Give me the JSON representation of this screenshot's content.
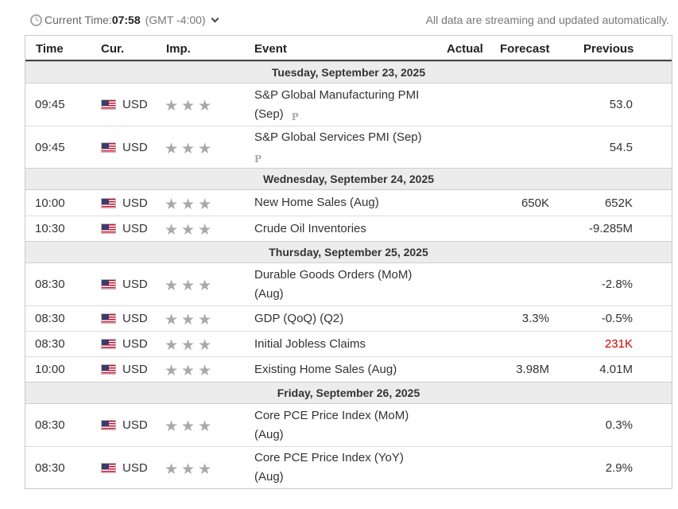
{
  "header": {
    "time_label": "Current Time:",
    "time_value": "07:58",
    "timezone": "(GMT -4:00)",
    "streaming_note": "All data are streaming and updated automatically."
  },
  "columns": {
    "time": "Time",
    "currency": "Cur.",
    "importance": "Imp.",
    "event": "Event",
    "actual": "Actual",
    "forecast": "Forecast",
    "previous": "Previous"
  },
  "colors": {
    "negative_red": "#d40000",
    "star_gray": "#a9a9a9"
  },
  "days": [
    {
      "date": "Tuesday, September 23, 2025",
      "events": [
        {
          "time": "09:45",
          "flag_icon": "us-flag-icon",
          "currency": "USD",
          "importance": 3,
          "event_line1": "S&P Global Manufacturing PMI",
          "event_line2": "(Sep)",
          "preliminary": "P",
          "actual": "",
          "forecast": "",
          "previous": "53.0"
        },
        {
          "time": "09:45",
          "flag_icon": "us-flag-icon",
          "currency": "USD",
          "importance": 3,
          "event_line1": "S&P Global Services PMI (Sep)",
          "event_line2": "",
          "preliminary": "P",
          "actual": "",
          "forecast": "",
          "previous": "54.5"
        }
      ]
    },
    {
      "date": "Wednesday, September 24, 2025",
      "events": [
        {
          "time": "10:00",
          "flag_icon": "us-flag-icon",
          "currency": "USD",
          "importance": 3,
          "event_line1": "New Home Sales (Aug)",
          "event_line2": "",
          "actual": "",
          "forecast": "650K",
          "previous": "652K"
        },
        {
          "time": "10:30",
          "flag_icon": "us-flag-icon",
          "currency": "USD",
          "importance": 3,
          "event_line1": "Crude Oil Inventories",
          "event_line2": "",
          "actual": "",
          "forecast": "",
          "previous": "-9.285M"
        }
      ]
    },
    {
      "date": "Thursday, September 25, 2025",
      "events": [
        {
          "time": "08:30",
          "flag_icon": "us-flag-icon",
          "currency": "USD",
          "importance": 3,
          "event_line1": "Durable Goods Orders (MoM)",
          "event_line2": "(Aug)",
          "actual": "",
          "forecast": "",
          "previous": "-2.8%"
        },
        {
          "time": "08:30",
          "flag_icon": "us-flag-icon",
          "currency": "USD",
          "importance": 3,
          "event_line1": "GDP (QoQ) (Q2)",
          "event_line2": "",
          "actual": "",
          "forecast": "3.3%",
          "previous": "-0.5%"
        },
        {
          "time": "08:30",
          "flag_icon": "us-flag-icon",
          "currency": "USD",
          "importance": 3,
          "event_line1": "Initial Jobless Claims",
          "event_line2": "",
          "actual": "",
          "forecast": "",
          "previous": "231K",
          "previous_color": "red"
        },
        {
          "time": "10:00",
          "flag_icon": "us-flag-icon",
          "currency": "USD",
          "importance": 3,
          "event_line1": "Existing Home Sales (Aug)",
          "event_line2": "",
          "actual": "",
          "forecast": "3.98M",
          "previous": "4.01M"
        }
      ]
    },
    {
      "date": "Friday, September 26, 2025",
      "events": [
        {
          "time": "08:30",
          "flag_icon": "us-flag-icon",
          "currency": "USD",
          "importance": 3,
          "event_line1": "Core PCE Price Index (MoM)",
          "event_line2": "(Aug)",
          "actual": "",
          "forecast": "",
          "previous": "0.3%"
        },
        {
          "time": "08:30",
          "flag_icon": "us-flag-icon",
          "currency": "USD",
          "importance": 3,
          "event_line1": "Core PCE Price Index (YoY)",
          "event_line2": "(Aug)",
          "actual": "",
          "forecast": "",
          "previous": "2.9%"
        }
      ]
    }
  ]
}
